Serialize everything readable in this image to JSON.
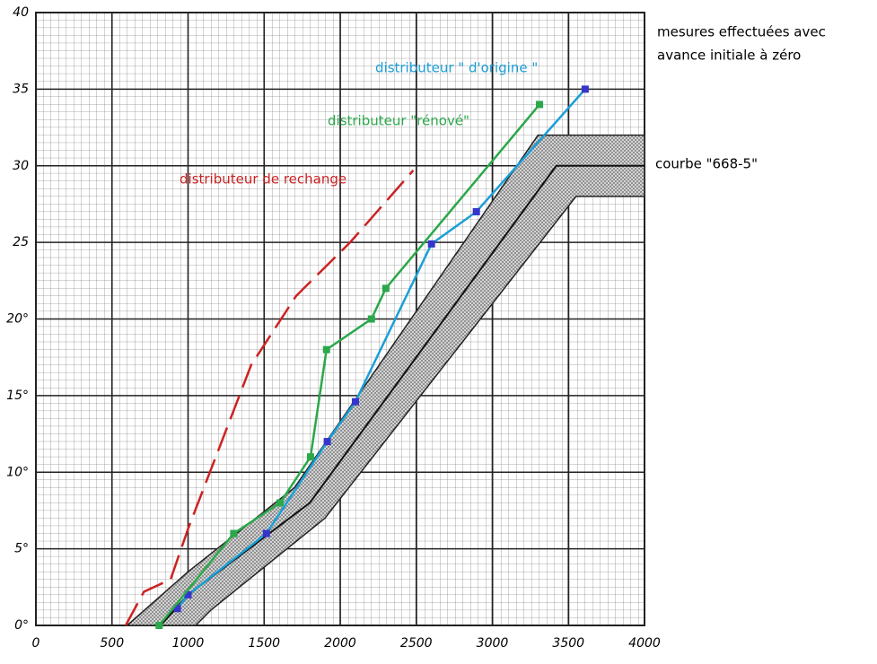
{
  "chart_data": {
    "type": "line",
    "annotation": [
      "mesures effectuées avec",
      "avance initiale à zéro"
    ],
    "xlim": [
      0,
      4000
    ],
    "ylim": [
      0,
      40
    ],
    "xticks": [
      0,
      500,
      1000,
      1500,
      2000,
      2500,
      3000,
      3500,
      4000
    ],
    "yticks": [
      {
        "value": 0,
        "label": "0°"
      },
      {
        "value": 5,
        "label": "5°"
      },
      {
        "value": 10,
        "label": "10°"
      },
      {
        "value": 15,
        "label": "15°"
      },
      {
        "value": 20,
        "label": "20°"
      },
      25,
      30,
      35,
      40
    ],
    "grid": true,
    "series": [
      {
        "name": "distributeur \" d'origine \"",
        "color": "#1a9fd8",
        "marker_color": "#3535cc",
        "markers": true,
        "dashed": false,
        "x": [
          930,
          1000,
          1515,
          1915,
          2100,
          2600,
          2895,
          3610
        ],
        "values": [
          1.1,
          2,
          6,
          12,
          14.6,
          24.9,
          27,
          35
        ]
      },
      {
        "name": "distributeur \"rénové\"",
        "color": "#2aa84a",
        "marker_color": "#2aa84a",
        "markers": true,
        "dashed": false,
        "x": [
          810,
          1300,
          1605,
          1805,
          1910,
          2205,
          2300,
          3310
        ],
        "values": [
          0,
          6,
          8,
          11,
          18,
          20,
          22,
          34
        ]
      },
      {
        "name": "distributeur de rechange",
        "color": "#cc2222",
        "marker_color": "#cc2222",
        "markers": false,
        "dashed": true,
        "x": [
          590,
          710,
          885,
          1000,
          1415,
          1710,
          2065,
          2480
        ],
        "values": [
          0,
          2.2,
          3,
          6.3,
          17,
          21.5,
          25,
          29.7
        ]
      }
    ],
    "band": {
      "name": "courbe \"668-5\"",
      "color": "#b0b0b0",
      "upper": {
        "x": [
          600,
          1000,
          1700,
          3300,
          4000
        ],
        "values": [
          0,
          3.5,
          9,
          32,
          32
        ]
      },
      "lower": {
        "x": [
          1050,
          1150,
          1900,
          3550,
          4000
        ],
        "values": [
          0,
          1,
          7,
          28,
          28
        ]
      },
      "center": {
        "x": [
          820,
          1000,
          1800,
          3420,
          4000
        ],
        "values": [
          0,
          2,
          8,
          30,
          30
        ]
      }
    }
  }
}
